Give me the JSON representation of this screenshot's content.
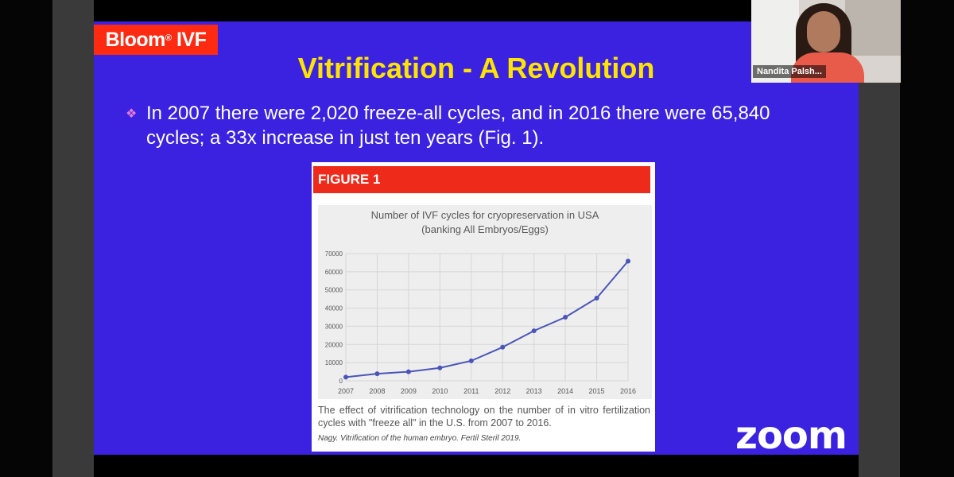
{
  "slide": {
    "logo_main": "Bloom",
    "logo_mark": "®",
    "logo_suffix": "IVF",
    "title": "Vitrification - A Revolution",
    "bullet": "In 2007 there were 2,020 freeze-all cycles, and in 2016 there were 65,840 cycles; a 33x increase in just ten years (Fig. 1).",
    "figure": {
      "label": "FIGURE 1",
      "caption": "The effect of vitrification technology on the number of in vitro fertilization cycles with \"freeze all\" in the U.S. from 2007 to 2016.",
      "citation": "Nagy. Vitrification of the human embryo. Fertil Steril 2019."
    }
  },
  "chart_data": {
    "type": "line",
    "title": "Number of IVF cycles for cryopreservation in USA",
    "subtitle": "(banking All Embryos/Eggs)",
    "xlabel": "",
    "ylabel": "",
    "x": [
      "2007",
      "2008",
      "2009",
      "2010",
      "2011",
      "2012",
      "2013",
      "2014",
      "2015",
      "2016"
    ],
    "series": [
      {
        "values": [
          2020,
          3900,
          5000,
          7100,
          11000,
          18500,
          27500,
          35000,
          45500,
          65840
        ]
      }
    ],
    "ylim": [
      0,
      70000
    ],
    "yticks": [
      "0",
      "10000",
      "20000",
      "30000",
      "40000",
      "50000",
      "60000",
      "70000"
    ],
    "grid": true,
    "legend": "none",
    "line_color": "#4a55b8"
  },
  "video": {
    "participant_name": "Nandita Palsh..."
  },
  "app": {
    "brand": "zoom"
  }
}
